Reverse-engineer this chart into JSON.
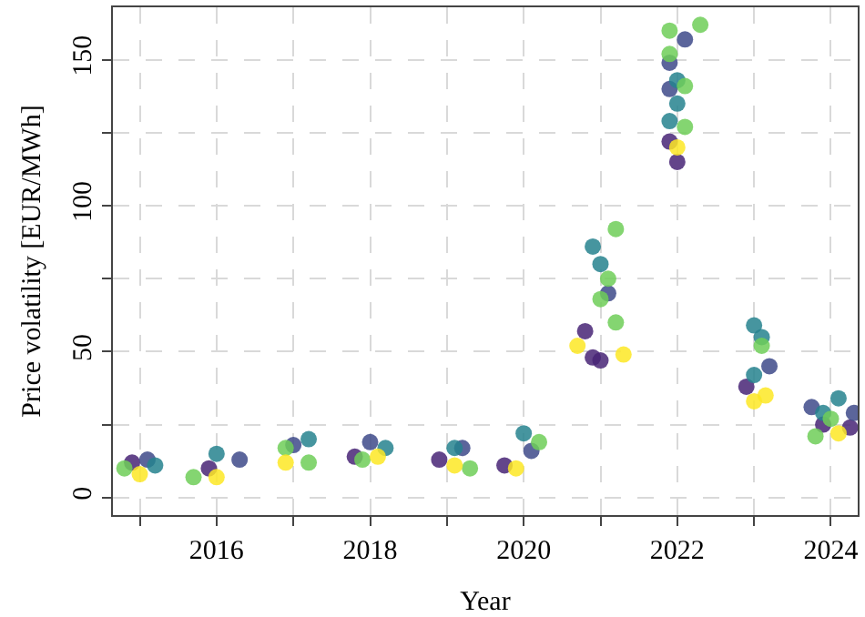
{
  "chart_data": {
    "type": "scatter",
    "xlabel": "Year",
    "ylabel": "Price volatility [EUR/MWh]",
    "xlim": [
      2014.65,
      2024.35
    ],
    "ylim": [
      -6,
      168
    ],
    "xticks": [
      {
        "value": 2015,
        "label": null
      },
      2016,
      {
        "value": 2017,
        "label": null
      },
      2018,
      {
        "value": 2019,
        "label": null
      },
      2020,
      {
        "value": 2021,
        "label": null
      },
      2022,
      {
        "value": 2023,
        "label": null
      },
      2024
    ],
    "yticks": [
      0,
      {
        "value": 25,
        "label": null
      },
      50,
      {
        "value": 75,
        "label": null
      },
      100,
      {
        "value": 125,
        "label": null
      },
      150
    ],
    "grid": true,
    "marker": "circle",
    "series": [
      {
        "color": "#482576",
        "x": [
          2014.9,
          2015.9,
          2017.8,
          2018.9,
          2019.75,
          2020.8,
          2020.9,
          2021.0,
          2021.9,
          2022.0,
          2022.9,
          2024.25,
          2023.9
        ],
        "values": [
          12,
          10,
          14,
          13,
          11,
          57,
          48,
          47,
          122,
          115,
          38,
          24,
          25
        ]
      },
      {
        "color": "#3e4a89",
        "x": [
          2015.1,
          2016.3,
          2017.0,
          2018.0,
          2019.2,
          2020.1,
          2021.1,
          2021.9,
          2022.1,
          2021.9,
          2023.2,
          2023.75,
          2024.3
        ],
        "values": [
          13,
          13,
          18,
          19,
          17,
          16,
          70,
          149,
          157,
          140,
          45,
          31,
          29
        ]
      },
      {
        "color": "#26828e",
        "x": [
          2015.2,
          2016.0,
          2017.2,
          2018.2,
          2019.1,
          2020.0,
          2020.9,
          2021.0,
          2022.0,
          2022.0,
          2021.9,
          2023.0,
          2023.1,
          2023.0,
          2024.1,
          2023.9
        ],
        "values": [
          11,
          15,
          20,
          17,
          17,
          22,
          86,
          80,
          143,
          135,
          129,
          59,
          55,
          42,
          34,
          29
        ]
      },
      {
        "color": "#6ece58",
        "x": [
          2014.8,
          2015.7,
          2016.9,
          2017.2,
          2017.9,
          2019.3,
          2020.2,
          2021.2,
          2021.1,
          2021.0,
          2021.2,
          2021.9,
          2022.3,
          2021.9,
          2022.1,
          2022.1,
          2023.1,
          2023.8,
          2024.0
        ],
        "values": [
          10,
          7,
          17,
          12,
          13,
          10,
          19,
          92,
          75,
          68,
          60,
          160,
          162,
          152,
          141,
          127,
          52,
          21,
          27
        ]
      },
      {
        "color": "#fde725",
        "x": [
          2015.0,
          2016.0,
          2016.9,
          2018.1,
          2019.1,
          2019.9,
          2020.7,
          2021.3,
          2022.0,
          2023.15,
          2023.0,
          2024.1
        ],
        "values": [
          8,
          7,
          12,
          14,
          11,
          10,
          52,
          49,
          120,
          35,
          33,
          22
        ]
      }
    ]
  }
}
